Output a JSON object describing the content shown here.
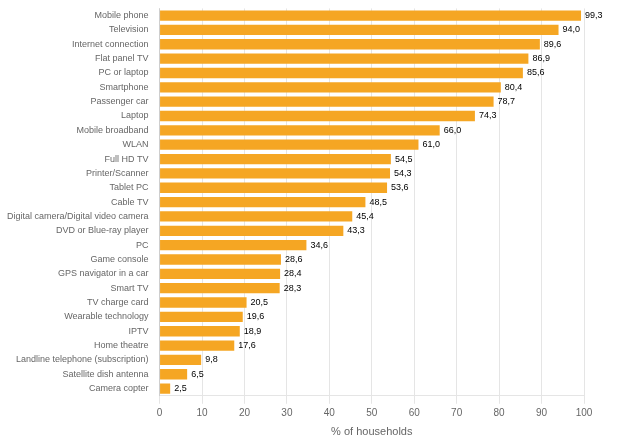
{
  "chart_data": {
    "type": "bar",
    "orientation": "horizontal",
    "categories": [
      "Camera copter",
      "Satellite dish antenna",
      "Landline telephone (subscription)",
      "Home theatre",
      "IPTV",
      "Wearable technology",
      "TV charge card",
      "Smart TV",
      "GPS navigator in a car",
      "Game console",
      "PC",
      "DVD or Blue-ray player",
      "Digital camera/Digital video camera",
      "Cable TV",
      "Tablet PC",
      "Printer/Scanner",
      "Full HD TV",
      "WLAN",
      "Mobile broadband",
      "Laptop",
      "Passenger car",
      "Smartphone",
      "PC or laptop",
      "Flat panel TV",
      "Internet connection",
      "Television",
      "Mobile phone"
    ],
    "values": [
      2.5,
      6.5,
      9.8,
      17.6,
      18.9,
      19.6,
      20.5,
      28.3,
      28.4,
      28.6,
      34.6,
      43.3,
      45.4,
      48.5,
      53.6,
      54.3,
      54.5,
      61.0,
      66.0,
      74.3,
      78.7,
      80.4,
      85.6,
      86.9,
      89.6,
      94.0,
      99.3
    ],
    "value_labels": [
      "2,5",
      "6,5",
      "9,8",
      "17,6",
      "18,9",
      "19,6",
      "20,5",
      "28,3",
      "28,4",
      "28,6",
      "34,6",
      "43,3",
      "45,4",
      "48,5",
      "53,6",
      "54,3",
      "54,5",
      "61,0",
      "66,0",
      "74,3",
      "78,7",
      "80,4",
      "85,6",
      "86,9",
      "89,6",
      "94,0",
      "99,3"
    ],
    "color": "#F5A623",
    "xlabel": "% of households",
    "xlim": [
      0,
      100
    ],
    "xticks": [
      0,
      10,
      20,
      30,
      40,
      50,
      60,
      70,
      80,
      90,
      100
    ],
    "grid": true,
    "data_labels": true
  }
}
